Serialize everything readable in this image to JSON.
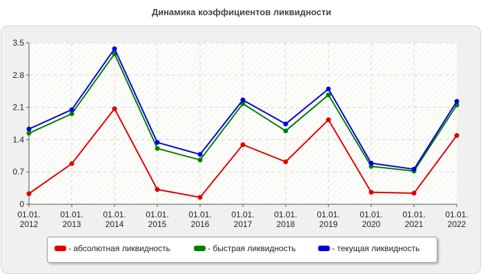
{
  "chart_data": {
    "type": "line",
    "title": "Динамика коэффициентов ликвидности",
    "xlabel": "",
    "ylabel": "",
    "categories": [
      [
        "01.01.",
        "2012"
      ],
      [
        "01.01.",
        "2013"
      ],
      [
        "01.01.",
        "2014"
      ],
      [
        "01.01.",
        "2015"
      ],
      [
        "01.01.",
        "2016"
      ],
      [
        "01.01.",
        "2017"
      ],
      [
        "01.01.",
        "2018"
      ],
      [
        "01.01.",
        "2019"
      ],
      [
        "01.01.",
        "2020"
      ],
      [
        "01.01.",
        "2021"
      ],
      [
        "01.01.",
        "2022"
      ]
    ],
    "ylim": [
      0,
      3.5
    ],
    "yticks": [
      "0",
      "0.7",
      "1.4",
      "2.1",
      "2.8",
      "3.5"
    ],
    "grid": true,
    "legend_position": "bottom",
    "series": [
      {
        "name": "- абсолютная ликвидность",
        "color": "#e00000",
        "values": [
          0.23,
          0.88,
          2.07,
          0.32,
          0.15,
          1.29,
          0.92,
          1.83,
          0.26,
          0.24,
          1.49
        ]
      },
      {
        "name": "- быстрая ликвидность",
        "color": "#008000",
        "values": [
          1.54,
          1.96,
          3.26,
          1.21,
          0.96,
          2.18,
          1.59,
          2.37,
          0.82,
          0.72,
          2.15
        ]
      },
      {
        "name": "- текущая ликвидность",
        "color": "#0000e0",
        "values": [
          1.63,
          2.05,
          3.37,
          1.34,
          1.08,
          2.26,
          1.74,
          2.5,
          0.89,
          0.76,
          2.23
        ]
      }
    ]
  }
}
